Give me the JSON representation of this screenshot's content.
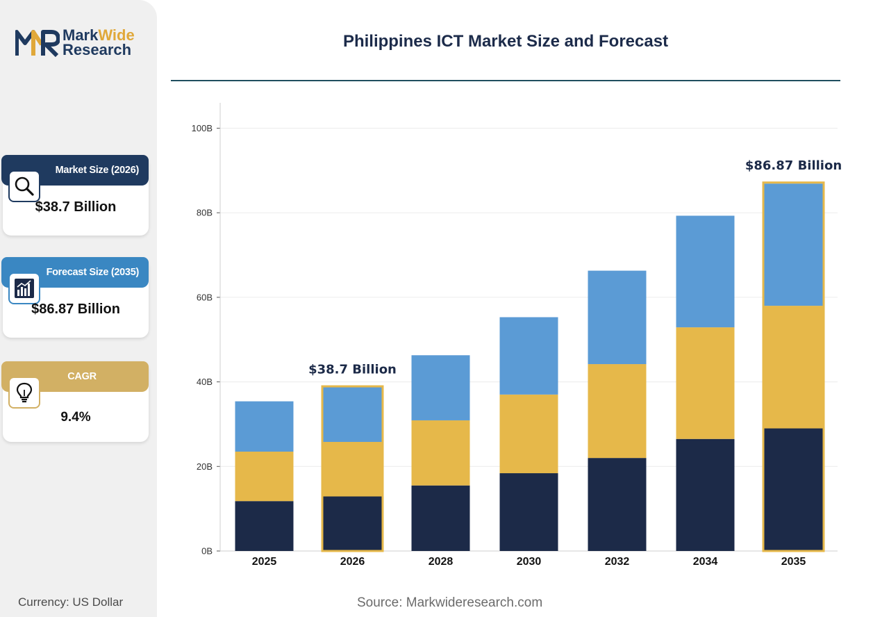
{
  "header": {
    "title": "Philippines ICT Market Size and Forecast",
    "logo_line1_a": "Mark",
    "logo_line1_b": "Wide",
    "logo_line2": "Research"
  },
  "sidebar": {
    "cards": [
      {
        "label": "Market Size (2026)",
        "value": "$38.7 Billion",
        "icon": "magnifier-icon",
        "color": "#1f3a5f"
      },
      {
        "label": "Forecast Size (2035)",
        "value": "$86.87 Billion",
        "icon": "bar-chart-icon",
        "color": "#3a87c2"
      },
      {
        "label": "CAGR",
        "value": "9.4%",
        "icon": "lightbulb-icon",
        "color": "#d2b064"
      }
    ],
    "currency": "Currency: US Dollar"
  },
  "footer": {
    "source": "Source: Markwideresearch.com"
  },
  "colors": {
    "navy": "#1c2a48",
    "gold": "#e6b84a",
    "blue": "#5b9bd5",
    "highlight": "#e6b84a"
  },
  "chart_data": {
    "type": "bar",
    "stacked": true,
    "categories": [
      "2025",
      "2026",
      "2028",
      "2030",
      "2032",
      "2034",
      "2035"
    ],
    "series": [
      {
        "values": [
          11.8,
          12.9,
          15.5,
          18.4,
          22.0,
          26.5,
          29.0
        ]
      },
      {
        "values": [
          11.7,
          12.9,
          15.4,
          18.6,
          22.2,
          26.4,
          29.0
        ]
      },
      {
        "values": [
          11.9,
          12.9,
          15.4,
          18.3,
          22.1,
          26.4,
          28.9
        ]
      }
    ],
    "yticks": [
      "0B",
      "20B",
      "40B",
      "60B",
      "80B",
      "100B"
    ],
    "ylim": [
      0,
      100
    ],
    "grid": true,
    "highlighted": [
      "2026",
      "2035"
    ],
    "annotations": [
      {
        "category": "2026",
        "text": "$38.7 Billion"
      },
      {
        "category": "2035",
        "text": "$86.87 Billion"
      }
    ]
  }
}
